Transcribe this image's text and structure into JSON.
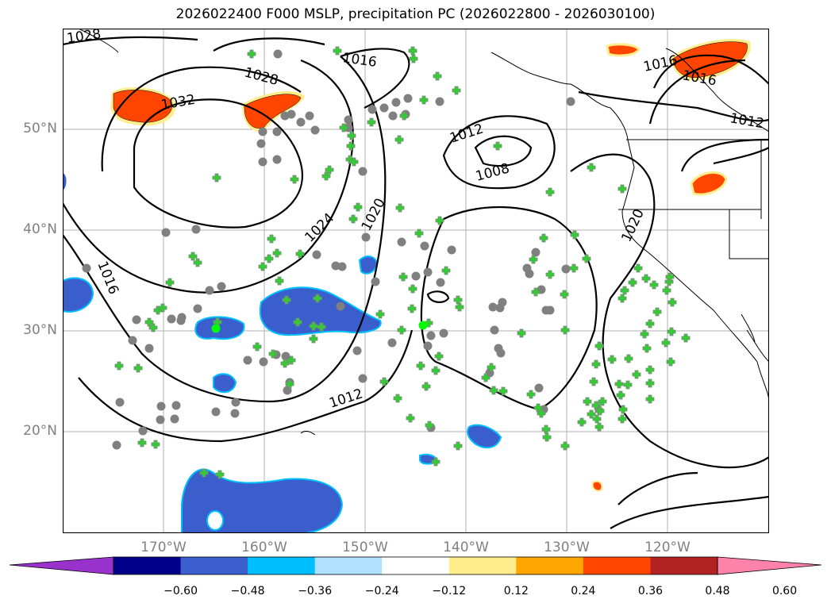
{
  "title": "2026022400 F000 MSLP, precipitation PC (2026022800 - 2026030100)",
  "map": {
    "projection": "cylindrical",
    "lon_range": [
      -180,
      -110
    ],
    "lat_range": [
      10,
      60
    ],
    "grid": true
  },
  "lat_labels": [
    "50°N",
    "40°N",
    "30°N",
    "20°N"
  ],
  "lon_labels": [
    "170°W",
    "160°W",
    "150°W",
    "140°W",
    "130°W",
    "120°W"
  ],
  "isobars": {
    "units": "hPa",
    "labels": [
      "1028",
      "1016",
      "1028",
      "1032",
      "1016",
      "1016",
      "1012",
      "1012",
      "1008",
      "1024",
      "1020",
      "1020",
      "1016",
      "1012"
    ]
  },
  "colorbar": {
    "ticks": [
      "−0.60",
      "−0.48",
      "−0.36",
      "−0.24",
      "−0.12",
      "0.12",
      "0.24",
      "0.36",
      "0.48",
      "0.60"
    ],
    "colors": [
      "#9932CC",
      "#00008B",
      "#3A5FCD",
      "#00BFFF",
      "#B0E2FF",
      "#FFFFFF",
      "#FFEC8B",
      "#FFA500",
      "#FF4500",
      "#B22222",
      "#FF82AB"
    ]
  },
  "markers": {
    "gray_circle_color": "#808080",
    "green_cross_color": "#32CD32"
  }
}
